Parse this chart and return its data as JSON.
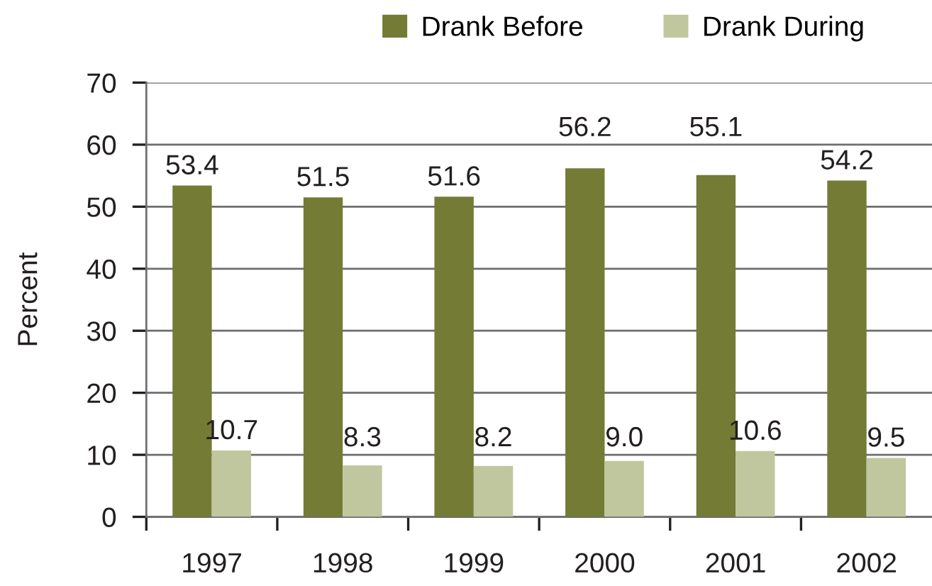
{
  "chart_data": {
    "type": "bar",
    "categories": [
      "1997",
      "1998",
      "1999",
      "2000",
      "2001",
      "2002"
    ],
    "series": [
      {
        "name": "Drank Before",
        "color": "#737b35",
        "values": [
          53.4,
          51.5,
          51.6,
          56.2,
          55.1,
          54.2
        ],
        "value_labels": [
          "53.4",
          "51.5",
          "51.6",
          "56.2",
          "55.1",
          "54.2"
        ]
      },
      {
        "name": "Drank During",
        "color": "#c0c79e",
        "values": [
          10.7,
          8.3,
          8.2,
          9.0,
          10.6,
          9.5
        ],
        "value_labels": [
          "10.7",
          "8.3",
          "8.2",
          "9.0",
          "10.6",
          "9.5"
        ]
      }
    ],
    "ylabel": "Percent",
    "ylim": [
      0,
      70
    ],
    "yticks": [
      0,
      10,
      20,
      30,
      40,
      50,
      60,
      70
    ],
    "grid": "y",
    "legend": "top"
  }
}
